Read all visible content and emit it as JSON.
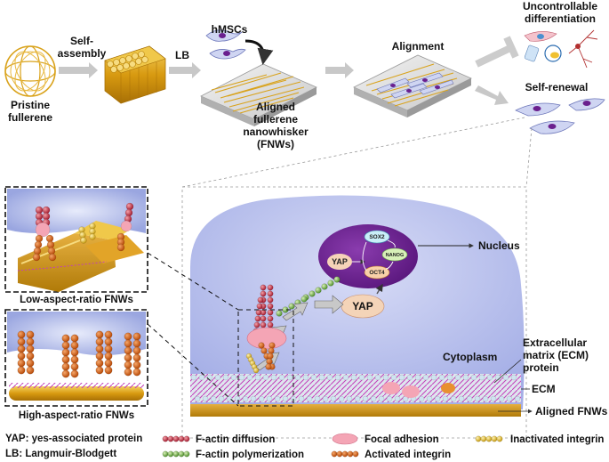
{
  "top_flow": {
    "pristine_fullerene": [
      "Pristine",
      "fullerene"
    ],
    "self_assembly": [
      "Self-",
      "assembly"
    ],
    "lb": "LB",
    "hmscs": "hMSCs",
    "aligned_fnw": [
      "Aligned",
      "fullerene",
      "nanowhisker",
      "(FNWs)"
    ],
    "alignment": "Alignment",
    "uncontrollable": [
      "Uncontrollable",
      "differentiation"
    ],
    "self_renewal": "Self-renewal"
  },
  "insets": {
    "low_aspect": "Low-aspect-ratio FNWs",
    "high_aspect": "High-aspect-ratio FNWs"
  },
  "cell": {
    "yap_nucleus": "YAP",
    "sox2": "SOX2",
    "nanog": "NANOG",
    "oct4": "OCT4",
    "nucleus": "Nucleus",
    "yap_cytoplasm": "YAP",
    "cytoplasm": "Cytoplasm",
    "ecm_protein": [
      "Extracellular",
      "matrix (ECM)",
      "protein"
    ],
    "ecm": "ECM",
    "aligned_fnws": "Aligned FNWs"
  },
  "legend": {
    "yap_def": "YAP: yes-associated protein",
    "lb_def": "LB: Langmuir-Blodgett",
    "f_actin_diffusion": "F-actin diffusion",
    "f_actin_polymerization": "F-actin polymerization",
    "focal_adhesion": "Focal adhesion",
    "activated_integrin": "Activated integrin",
    "inactivated_integrin": "Inactivated integrin"
  },
  "colors": {
    "gold": "#d9a21a",
    "cell_blue": "#a9b2e8",
    "nucleus_purple": "#6a1f8e",
    "actin_red": "#a51c30",
    "actin_green": "#6aa84f",
    "integrin_orange": "#d35f12",
    "focal_pink": "#f4a5b5",
    "arrow_grey": "#c8c8c8"
  }
}
